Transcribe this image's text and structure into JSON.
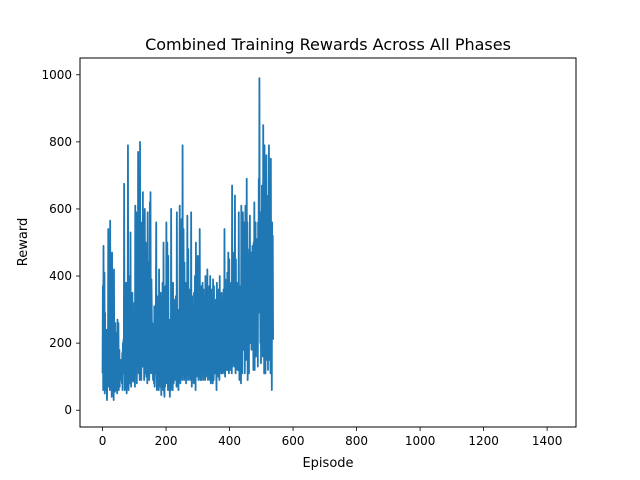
{
  "chart_data": {
    "type": "line",
    "title": "Combined Training Rewards Across All Phases",
    "xlabel": "Episode",
    "ylabel": "Reward",
    "xlim": [
      -71,
      1491
    ],
    "ylim": [
      -50,
      1050
    ],
    "xticks": [
      0,
      200,
      400,
      600,
      800,
      1000,
      1200,
      1400
    ],
    "yticks": [
      0,
      200,
      400,
      600,
      800,
      1000
    ],
    "grid": false,
    "legend": "none",
    "line_color": "#1f77b4",
    "series": [
      {
        "x_start": 0,
        "x_step": 1,
        "values": [
          110,
          370,
          60,
          490,
          140,
          80,
          410,
          50,
          290,
          90,
          180,
          60,
          240,
          100,
          30,
          120,
          210,
          75,
          540,
          150,
          70,
          300,
          110,
          60,
          565,
          180,
          90,
          320,
          160,
          40,
          470,
          110,
          60,
          260,
          140,
          30,
          420,
          80,
          170,
          55,
          260,
          100,
          230,
          60,
          130,
          180,
          50,
          270,
          90,
          140,
          260,
          60,
          120,
          180,
          70,
          150,
          100,
          90,
          150,
          100,
          130,
          80,
          170,
          60,
          200,
          110,
          210,
          120,
          675,
          210,
          60,
          130,
          170,
          90,
          380,
          110,
          50,
          280,
          130,
          70,
          790,
          210,
          60,
          400,
          110,
          150,
          160,
          80,
          530,
          120,
          70,
          260,
          160,
          90,
          350,
          100,
          85,
          140,
          220,
          110,
          320,
          180,
          70,
          610,
          250,
          140,
          590,
          200,
          80,
          560,
          210,
          130,
          770,
          230,
          110,
          490,
          170,
          90,
          800,
          150,
          210,
          420,
          90,
          300,
          560,
          210,
          130,
          650,
          240,
          150,
          410,
          90,
          340,
          600,
          200,
          110,
          500,
          170,
          100,
          410,
          160,
          80,
          590,
          210,
          180,
          440,
          150,
          90,
          180,
          620,
          150,
          650,
          230,
          110,
          390,
          300,
          130,
          260,
          140,
          90,
          180,
          230,
          80,
          310,
          70,
          160,
          250,
          110,
          330,
          560,
          180,
          60,
          340,
          140,
          90,
          250,
          120,
          60,
          420,
          140,
          80,
          210,
          70,
          350,
          100,
          45,
          270,
          90,
          140,
          380,
          110,
          60,
          500,
          150,
          55,
          40,
          160,
          70,
          370,
          180,
          80,
          560,
          170,
          90,
          500,
          120,
          60,
          460,
          140,
          80,
          270,
          90,
          40,
          150,
          100,
          60,
          600,
          140,
          90,
          300,
          110,
          60,
          380,
          130,
          80,
          250,
          160,
          90,
          330,
          120,
          100,
          340,
          130,
          70,
          590,
          160,
          120,
          300,
          110,
          60,
          260,
          130,
          90,
          610,
          150,
          80,
          470,
          190,
          110,
          570,
          140,
          90,
          790,
          230,
          110,
          540,
          200,
          90,
          440,
          150,
          110,
          380,
          160,
          80,
          300,
          140,
          90,
          580,
          190,
          110,
          480,
          170,
          90,
          360,
          130,
          100,
          280,
          150,
          90,
          590,
          170,
          70,
          340,
          150,
          110,
          310,
          160,
          80,
          350,
          140,
          100,
          400,
          160,
          60,
          500,
          150,
          100,
          320,
          160,
          110,
          460,
          150,
          90,
          330,
          140,
          100,
          540,
          180,
          90,
          340,
          150,
          90,
          370,
          130,
          110,
          380,
          180,
          90,
          360,
          150,
          100,
          330,
          160,
          90,
          400,
          140,
          110,
          300,
          170,
          100,
          420,
          160,
          90,
          330,
          130,
          110,
          370,
          160,
          90,
          400,
          150,
          80,
          360,
          160,
          120,
          300,
          110,
          80,
          390,
          150,
          90,
          370,
          130,
          110,
          310,
          120,
          110,
          330,
          110,
          60,
          380,
          150,
          120,
          300,
          140,
          100,
          360,
          130,
          90,
          400,
          160,
          120,
          300,
          150,
          110,
          350,
          140,
          110,
          330,
          180,
          120,
          360,
          130,
          110,
          540,
          150,
          100,
          390,
          140,
          120,
          360,
          180,
          120,
          410,
          150,
          120,
          470,
          160,
          110,
          450,
          130,
          120,
          360,
          210,
          130,
          380,
          130,
          110,
          670,
          230,
          130,
          470,
          140,
          150,
          340,
          220,
          130,
          640,
          170,
          110,
          450,
          180,
          130,
          380,
          140,
          120,
          360,
          140,
          120,
          590,
          200,
          90,
          370,
          190,
          130,
          370,
          80,
          610,
          190,
          360,
          110,
          520,
          590,
          180,
          440,
          480,
          250,
          560,
          110,
          480,
          610,
          310,
          590,
          150,
          690,
          240,
          560,
          90,
          410,
          260,
          460,
          110,
          480,
          330,
          580,
          200,
          420,
          300,
          470,
          180,
          400,
          300,
          490,
          210,
          470,
          120,
          500,
          280,
          620,
          120,
          460,
          330,
          560,
          160,
          430,
          260,
          510,
          190,
          460,
          130,
          560,
          290,
          690,
          320,
          990,
          450,
          530,
          200,
          590,
          140,
          440,
          280,
          670,
          220,
          480,
          160,
          850,
          300,
          530,
          110,
          790,
          260,
          460,
          110,
          480,
          370,
          760,
          150,
          610,
          210,
          560,
          120,
          640,
          310,
          790,
          150,
          520,
          300,
          590,
          110,
          750,
          320,
          540,
          60,
          560,
          250,
          520,
          210
        ]
      }
    ]
  }
}
